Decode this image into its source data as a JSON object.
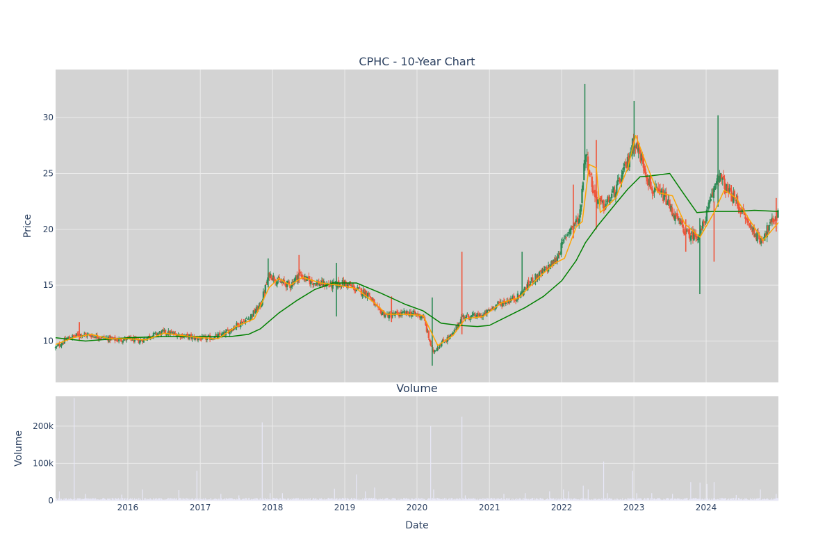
{
  "chart_data": [
    {
      "type": "candlestick",
      "title": "CPHC - 10-Year Chart",
      "xlabel": "",
      "ylabel": "Price",
      "xlim": [
        "2015-01-01",
        "2024-12-31"
      ],
      "ylim": [
        6.3,
        34.3
      ],
      "x_ticks": [
        "2016",
        "2017",
        "2018",
        "2019",
        "2020",
        "2021",
        "2022",
        "2023",
        "2024"
      ],
      "y_ticks": [
        10,
        15,
        20,
        25,
        30
      ],
      "grid": true,
      "colors": {
        "plot_bg": "#d3d3d3",
        "grid": "#ebebeb",
        "up": "#2e8b57",
        "down": "#ef553b",
        "ma_short": "#ffa500",
        "ma_long": "#008000"
      },
      "price_path": [
        [
          "2015-01-01",
          9.4
        ],
        [
          "2015-03-01",
          10.2
        ],
        [
          "2015-05-01",
          10.6
        ],
        [
          "2015-07-01",
          10.5
        ],
        [
          "2015-09-01",
          10.3
        ],
        [
          "2015-11-01",
          10.1
        ],
        [
          "2016-01-01",
          10.2
        ],
        [
          "2016-03-01",
          10.0
        ],
        [
          "2016-05-01",
          10.5
        ],
        [
          "2016-07-01",
          10.8
        ],
        [
          "2016-09-01",
          10.6
        ],
        [
          "2016-11-01",
          10.4
        ],
        [
          "2017-01-01",
          10.2
        ],
        [
          "2017-03-01",
          10.3
        ],
        [
          "2017-05-01",
          10.6
        ],
        [
          "2017-07-01",
          11.4
        ],
        [
          "2017-09-01",
          12.0
        ],
        [
          "2017-11-01",
          13.2
        ],
        [
          "2017-12-15",
          16.0
        ],
        [
          "2018-02-01",
          15.3
        ],
        [
          "2018-04-01",
          15.0
        ],
        [
          "2018-05-15",
          16.0
        ],
        [
          "2018-07-01",
          15.4
        ],
        [
          "2018-09-01",
          15.1
        ],
        [
          "2018-11-01",
          15.0
        ],
        [
          "2019-01-01",
          15.2
        ],
        [
          "2019-03-01",
          14.6
        ],
        [
          "2019-05-01",
          14.2
        ],
        [
          "2019-06-15",
          12.8
        ],
        [
          "2019-08-01",
          12.3
        ],
        [
          "2019-10-01",
          12.4
        ],
        [
          "2019-12-01",
          12.5
        ],
        [
          "2020-02-01",
          12.2
        ],
        [
          "2020-03-20",
          9.0
        ],
        [
          "2020-05-01",
          9.8
        ],
        [
          "2020-07-01",
          10.6
        ],
        [
          "2020-08-15",
          12.2
        ],
        [
          "2020-10-01",
          12.2
        ],
        [
          "2020-12-01",
          12.3
        ],
        [
          "2021-02-01",
          13.2
        ],
        [
          "2021-04-01",
          13.6
        ],
        [
          "2021-06-01",
          14.0
        ],
        [
          "2021-08-01",
          15.4
        ],
        [
          "2021-10-01",
          16.2
        ],
        [
          "2021-12-01",
          17.2
        ],
        [
          "2022-02-01",
          19.8
        ],
        [
          "2022-04-01",
          21.0
        ],
        [
          "2022-05-01",
          27.0
        ],
        [
          "2022-06-15",
          23.0
        ],
        [
          "2022-08-01",
          22.0
        ],
        [
          "2022-10-01",
          23.5
        ],
        [
          "2022-12-01",
          26.0
        ],
        [
          "2023-01-01",
          28.0
        ],
        [
          "2023-02-15",
          26.0
        ],
        [
          "2023-04-01",
          23.5
        ],
        [
          "2023-06-01",
          23.0
        ],
        [
          "2023-08-01",
          21.0
        ],
        [
          "2023-10-01",
          19.5
        ],
        [
          "2023-12-01",
          19.5
        ],
        [
          "2024-02-01",
          23.0
        ],
        [
          "2024-03-01",
          25.0
        ],
        [
          "2024-04-15",
          23.5
        ],
        [
          "2024-06-01",
          22.5
        ],
        [
          "2024-08-01",
          20.5
        ],
        [
          "2024-10-01",
          19.0
        ],
        [
          "2024-12-31",
          21.5
        ]
      ],
      "spikes": [
        {
          "date": "2015-05-01",
          "high": 11.7,
          "low": 10.0
        },
        {
          "date": "2017-12-10",
          "high": 17.4,
          "low": 14.8
        },
        {
          "date": "2018-05-15",
          "high": 17.7,
          "low": 15.2
        },
        {
          "date": "2018-11-20",
          "high": 17.0,
          "low": 12.2
        },
        {
          "date": "2019-08-25",
          "high": 14.0,
          "low": 11.7
        },
        {
          "date": "2020-03-18",
          "high": 13.9,
          "low": 7.8
        },
        {
          "date": "2020-08-15",
          "high": 18.0,
          "low": 10.6
        },
        {
          "date": "2021-06-15",
          "high": 18.0,
          "low": 14.2
        },
        {
          "date": "2022-03-01",
          "high": 24.0,
          "low": 19.2
        },
        {
          "date": "2022-04-28",
          "high": 33.0,
          "low": 25.3
        },
        {
          "date": "2022-06-25",
          "high": 28.0,
          "low": 20.0
        },
        {
          "date": "2023-01-02",
          "high": 31.5,
          "low": 26.5
        },
        {
          "date": "2023-09-20",
          "high": 20.9,
          "low": 18.0
        },
        {
          "date": "2023-11-30",
          "high": 21.0,
          "low": 14.2
        },
        {
          "date": "2024-02-10",
          "high": 22.5,
          "low": 17.1
        },
        {
          "date": "2024-03-01",
          "high": 30.2,
          "low": 22.0
        },
        {
          "date": "2024-12-20",
          "high": 22.8,
          "low": 19.8
        }
      ],
      "ma_short": [
        [
          "2015-01-01",
          9.7
        ],
        [
          "2015-04-01",
          10.3
        ],
        [
          "2015-07-01",
          10.6
        ],
        [
          "2015-10-01",
          10.2
        ],
        [
          "2016-01-01",
          10.2
        ],
        [
          "2016-04-01",
          10.1
        ],
        [
          "2016-07-01",
          10.7
        ],
        [
          "2016-10-01",
          10.5
        ],
        [
          "2017-01-01",
          10.3
        ],
        [
          "2017-04-01",
          10.2
        ],
        [
          "2017-07-01",
          11.3
        ],
        [
          "2017-10-01",
          12.0
        ],
        [
          "2017-12-15",
          14.8
        ],
        [
          "2018-02-01",
          15.6
        ],
        [
          "2018-04-01",
          15.0
        ],
        [
          "2018-06-01",
          15.7
        ],
        [
          "2018-09-01",
          15.2
        ],
        [
          "2018-12-01",
          15.0
        ],
        [
          "2019-03-01",
          14.7
        ],
        [
          "2019-06-01",
          13.4
        ],
        [
          "2019-08-01",
          12.4
        ],
        [
          "2019-11-01",
          12.4
        ],
        [
          "2020-02-01",
          12.3
        ],
        [
          "2020-04-15",
          9.6
        ],
        [
          "2020-07-01",
          10.5
        ],
        [
          "2020-09-01",
          12.0
        ],
        [
          "2020-12-01",
          12.2
        ],
        [
          "2021-03-01",
          13.4
        ],
        [
          "2021-06-01",
          13.9
        ],
        [
          "2021-09-01",
          15.6
        ],
        [
          "2021-12-01",
          17.0
        ],
        [
          "2022-01-15",
          17.4
        ],
        [
          "2022-03-15",
          20.2
        ],
        [
          "2022-04-15",
          20.7
        ],
        [
          "2022-05-20",
          25.8
        ],
        [
          "2022-06-25",
          25.5
        ],
        [
          "2022-07-15",
          21.5
        ],
        [
          "2022-10-01",
          22.8
        ],
        [
          "2022-12-01",
          25.5
        ],
        [
          "2023-01-10",
          28.4
        ],
        [
          "2023-03-01",
          26.0
        ],
        [
          "2023-05-01",
          23.3
        ],
        [
          "2023-07-15",
          23.0
        ],
        [
          "2023-09-15",
          20.5
        ],
        [
          "2023-12-01",
          19.3
        ],
        [
          "2024-02-10",
          21.5
        ],
        [
          "2024-04-01",
          23.5
        ],
        [
          "2024-06-01",
          22.8
        ],
        [
          "2024-08-01",
          21.0
        ],
        [
          "2024-10-15",
          19.0
        ],
        [
          "2024-12-31",
          20.6
        ]
      ],
      "ma_long": [
        [
          "2015-01-01",
          10.3
        ],
        [
          "2015-06-01",
          10.0
        ],
        [
          "2016-01-01",
          10.3
        ],
        [
          "2016-07-01",
          10.4
        ],
        [
          "2017-01-01",
          10.4
        ],
        [
          "2017-06-01",
          10.4
        ],
        [
          "2017-09-01",
          10.6
        ],
        [
          "2017-11-01",
          11.1
        ],
        [
          "2018-02-01",
          12.5
        ],
        [
          "2018-05-01",
          13.6
        ],
        [
          "2018-08-01",
          14.6
        ],
        [
          "2018-11-01",
          15.2
        ],
        [
          "2019-03-01",
          15.2
        ],
        [
          "2019-07-01",
          14.3
        ],
        [
          "2019-11-01",
          13.3
        ],
        [
          "2020-02-01",
          12.7
        ],
        [
          "2020-05-01",
          11.6
        ],
        [
          "2020-08-01",
          11.4
        ],
        [
          "2020-11-01",
          11.3
        ],
        [
          "2021-01-01",
          11.4
        ],
        [
          "2021-04-01",
          12.2
        ],
        [
          "2021-07-01",
          13.0
        ],
        [
          "2021-10-01",
          14.0
        ],
        [
          "2022-01-01",
          15.4
        ],
        [
          "2022-03-15",
          17.2
        ],
        [
          "2022-05-01",
          18.8
        ],
        [
          "2022-07-01",
          20.3
        ],
        [
          "2022-10-01",
          22.3
        ],
        [
          "2022-12-01",
          23.6
        ],
        [
          "2023-02-01",
          24.7
        ],
        [
          "2023-04-01",
          24.8
        ],
        [
          "2023-07-01",
          25.0
        ],
        [
          "2023-09-01",
          23.4
        ],
        [
          "2023-11-15",
          21.5
        ],
        [
          "2024-02-01",
          21.6
        ],
        [
          "2024-06-01",
          21.6
        ],
        [
          "2024-09-01",
          21.7
        ],
        [
          "2024-12-31",
          21.6
        ]
      ]
    },
    {
      "type": "bar",
      "title": "Volume",
      "xlabel": "Date",
      "ylabel": "Volume",
      "xlim": [
        "2015-01-01",
        "2024-12-31"
      ],
      "ylim": [
        0,
        280000
      ],
      "x_ticks": [
        "2016",
        "2017",
        "2018",
        "2019",
        "2020",
        "2021",
        "2022",
        "2023",
        "2024"
      ],
      "y_ticks": [
        0,
        100000,
        200000
      ],
      "y_tick_labels": [
        "0",
        "100k",
        "200k"
      ],
      "grid": true,
      "colors": {
        "plot_bg": "#d3d3d3",
        "bar": "#e8e8f8"
      },
      "baseline": 5000,
      "spikes": [
        [
          "2015-01-20",
          25000
        ],
        [
          "2015-04-05",
          275000
        ],
        [
          "2015-06-01",
          18000
        ],
        [
          "2015-12-01",
          16000
        ],
        [
          "2016-03-15",
          30000
        ],
        [
          "2016-09-15",
          28000
        ],
        [
          "2016-12-15",
          80000
        ],
        [
          "2017-04-15",
          18000
        ],
        [
          "2017-07-15",
          14000
        ],
        [
          "2017-11-10",
          210000
        ],
        [
          "2017-12-20",
          20000
        ],
        [
          "2018-02-20",
          20000
        ],
        [
          "2018-11-10",
          32000
        ],
        [
          "2019-03-01",
          70000
        ],
        [
          "2019-04-15",
          25000
        ],
        [
          "2019-06-01",
          35000
        ],
        [
          "2020-03-10",
          200000
        ],
        [
          "2020-03-25",
          30000
        ],
        [
          "2020-08-15",
          225000
        ],
        [
          "2020-09-01",
          14000
        ],
        [
          "2021-03-15",
          18000
        ],
        [
          "2021-07-01",
          20000
        ],
        [
          "2021-11-01",
          25000
        ],
        [
          "2022-01-10",
          30000
        ],
        [
          "2022-02-05",
          25000
        ],
        [
          "2022-04-20",
          40000
        ],
        [
          "2022-05-15",
          30000
        ],
        [
          "2022-08-01",
          105000
        ],
        [
          "2022-08-20",
          20000
        ],
        [
          "2022-12-25",
          80000
        ],
        [
          "2023-01-15",
          20000
        ],
        [
          "2023-04-01",
          20000
        ],
        [
          "2023-07-15",
          18000
        ],
        [
          "2023-10-15",
          50000
        ],
        [
          "2023-12-01",
          48000
        ],
        [
          "2024-01-05",
          45000
        ],
        [
          "2024-02-10",
          50000
        ],
        [
          "2024-06-01",
          15000
        ],
        [
          "2024-10-01",
          30000
        ],
        [
          "2024-12-20",
          18000
        ]
      ]
    }
  ]
}
